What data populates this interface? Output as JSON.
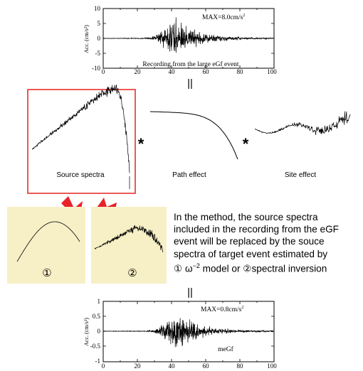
{
  "top_waveform": {
    "max_label": "MAX=8.0cm/s",
    "max_label_exp": "2",
    "ylabel": "Acc. (cm/s²)",
    "caption": "Recording from the large eGf event",
    "y_ticks": [
      "10",
      "5",
      "0",
      "-5",
      "-10"
    ],
    "x_ticks": [
      "0",
      "20",
      "40",
      "60",
      "80",
      "100"
    ],
    "xlim": [
      0,
      100
    ],
    "ylim": [
      -10,
      10
    ]
  },
  "bottom_waveform": {
    "max_label": "MAX=0.8cm/s",
    "max_label_exp": "2",
    "ylabel": "Acc. (cm/s²)",
    "caption": "meGf",
    "y_ticks": [
      "1",
      "0.5",
      "0",
      "-0.5",
      "-1"
    ],
    "x_ticks": [
      "0",
      "20",
      "40",
      "60",
      "80",
      "100"
    ],
    "xlim": [
      0,
      100
    ],
    "ylim": [
      -1,
      1
    ]
  },
  "equals_symbol": "||",
  "multiply_symbol": "*",
  "source_label": "Source spectra",
  "path_label": "Path effect",
  "site_label": "Site effect",
  "model_label_1": "①",
  "model_label_2": "②",
  "method_text": {
    "line1": "In the method, the source spectra",
    "line2": "included in the recording from the eGF",
    "line3": "event will be replaced by the souce",
    "line4": "spectra of target event estimated by",
    "line5_prefix": "① ω",
    "line5_exp": "−2",
    "line5_suffix": " model or ②spectral inversion"
  },
  "colors": {
    "highlight_box": "#e8302c",
    "arrow": "#e8222b",
    "panel_fill": "#f7efc6"
  }
}
